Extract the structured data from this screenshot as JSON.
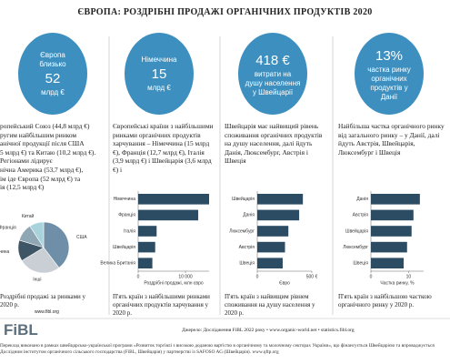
{
  "header": {
    "title": "ЄВРОПА: РОЗДРІБНІ ПРОДАЖІ ОРГАНІЧНИХ ПРОДУКТІВ 2020"
  },
  "panels": [
    {
      "badge": [
        "Європа",
        "близько",
        "52",
        "млрд €"
      ],
      "lines": [
        "ропейський Союз (44,8 млрд €)",
        "ругим найбільшим ринком",
        "анічної продукції після США",
        "5 млрд €) та Китаю (10,2 млрд €).",
        "Регіонами лідирує",
        "нічна Америка (53,7 млрд €),",
        "ім іде Європа (52 млрд €) та",
        "ія (12,5 млрд €)"
      ],
      "caption": "Роздрібні продажі за ринками у 2020 р."
    },
    {
      "badge": [
        "Німеччина",
        "15",
        "млрд €"
      ],
      "text": "Європейські країни з найбільшими ринками органічних продуктів харчування – Німеччина (15 млрд €), Франція (12,7 млрд €), Італія (3,9 млрд €) і Швейцарія (3,6 млрд €) і",
      "caption": "П'ять країн з найбільшими ринками органічних продуктів харчування у 2020 р."
    },
    {
      "badge": [
        "418 €",
        "витрати на",
        "душу населення",
        "у Швейцарії"
      ],
      "text": "Швейцарія має найвищий рівень споживання органічних продуктів на душу населення, далі йдуть Данія, Люксембург, Австрія і Швеція",
      "caption": "П'ять країн з найвищим рівнем споживання на душу населення у 2020 р."
    },
    {
      "badge": [
        "13%",
        "частка ринку",
        "органічних",
        "продуктів у",
        "Данії"
      ],
      "text": "Найбільша частка органічного ринку від загального ринку – у Данії, далі йдуть Австрія, Швейцарія, Люксембург і Швеція",
      "caption": "П'ять країн з найбільшою часткою органічного ринку у 2020 р."
    }
  ],
  "chart_data": [
    {
      "type": "pie",
      "categories": [
        "США",
        "Інші",
        "Німеччина",
        "Франція",
        "Китай"
      ],
      "values": [
        44.7,
        30,
        15,
        12.7,
        10.2
      ],
      "colors": [
        "#6f8fa8",
        "#c9cfd4",
        "#3e5566",
        "#8fa6b5",
        "#a9d3dc"
      ]
    },
    {
      "type": "hbar",
      "categories": [
        "Німеччина",
        "Франція",
        "Італія",
        "Швейцарія",
        "Велика Британія"
      ],
      "values": [
        15000,
        12700,
        3900,
        3600,
        3000
      ],
      "xlim": [
        0,
        15000
      ],
      "xticks": [
        0,
        {
          "value": 10000,
          "label": "10 000"
        }
      ],
      "xlabel": "Роздрібні продажі, млн євро",
      "color": "#2b4c63"
    },
    {
      "type": "hbar",
      "categories": [
        "Швейцарія",
        "Данія",
        "Люксембург",
        "Австрія",
        "Швеція"
      ],
      "values": [
        418,
        384,
        285,
        254,
        233
      ],
      "xlim": [
        0,
        500
      ],
      "xticks": [
        0,
        {
          "value": 500,
          "label": "500 €"
        }
      ],
      "xlabel": "Євро",
      "color": "#2b4c63"
    },
    {
      "type": "hbar",
      "categories": [
        "Данія",
        "Австрія",
        "Швейцарія",
        "Люксембург",
        "Швеція"
      ],
      "values": [
        13,
        11.3,
        10.8,
        9.6,
        8.7
      ],
      "xlim": [
        0,
        14
      ],
      "xticks": [
        0,
        10
      ],
      "xlabel": "Частка ринку, %",
      "color": "#2b4c63"
    }
  ],
  "footer": {
    "url": "www.fibl.org",
    "logo": "FiBL",
    "source": "Джерело: Дослідження FiBL 2022 року • www.organic-world.net • statistics.fibl.org",
    "note": "Переклад виконано в рамках швейцарсько-української програми «Розвиток торгівлі з високою доданою вартістю в органічному та молочному секторах України», що фінансується Швейцарією та впроваджується Дослідним інститутом органічного сільського господарства (FiBL, Швейцарія) у партнерстві із SAFOSO AG (Швейцарія). www.qftp.org"
  }
}
